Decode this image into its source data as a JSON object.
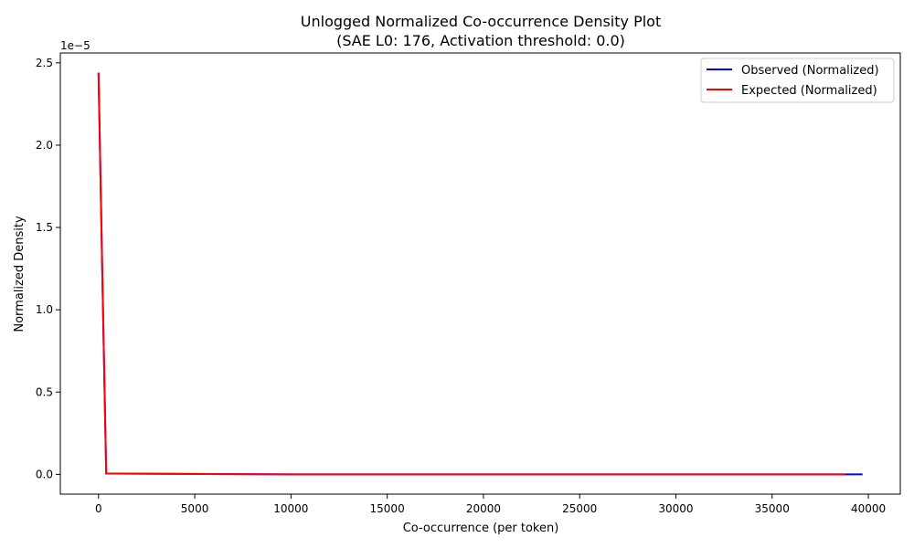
{
  "chart_data": {
    "type": "line",
    "title_line1": "Unlogged Normalized Co-occurrence Density Plot",
    "title_line2": "(SAE L0: 176, Activation threshold: 0.0)",
    "xlabel": "Co-occurrence (per token)",
    "ylabel": "Normalized Density",
    "y_offset_label": "1e−5",
    "xlim": [
      -1985,
      41660
    ],
    "ylim": [
      -0.12,
      2.56
    ],
    "x_ticks": [
      0,
      5000,
      10000,
      15000,
      20000,
      25000,
      30000,
      35000,
      40000
    ],
    "x_tick_labels": [
      "0",
      "5000",
      "10000",
      "15000",
      "20000",
      "25000",
      "30000",
      "35000",
      "40000"
    ],
    "y_ticks": [
      0.0,
      0.5,
      1.0,
      1.5,
      2.0,
      2.5
    ],
    "y_tick_labels": [
      "0.0",
      "0.5",
      "1.0",
      "1.5",
      "2.0",
      "2.5"
    ],
    "grid": false,
    "legend_position": "top-right",
    "series": [
      {
        "name": "Observed (Normalized)",
        "color": "#0000ff",
        "x": [
          0,
          200,
          400,
          10000,
          20000,
          30000,
          39700
        ],
        "y": [
          2.44,
          1.2,
          0.005,
          0.0,
          0.0,
          0.0,
          0.0
        ]
      },
      {
        "name": "Expected (Normalized)",
        "color": "#ff0000",
        "x": [
          0,
          200,
          400,
          10000,
          20000,
          30000,
          38800
        ],
        "y": [
          2.44,
          1.2,
          0.005,
          0.0,
          0.0,
          0.0,
          0.0
        ]
      }
    ]
  }
}
